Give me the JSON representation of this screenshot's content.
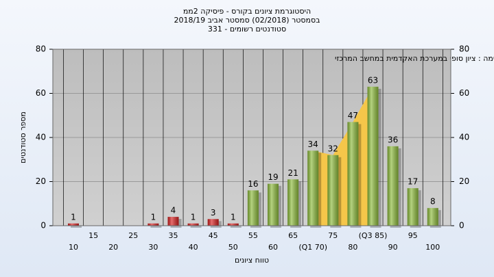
{
  "chart_data": {
    "type": "bar",
    "title_lines": [
      "היסטוגרמת ציונים בקורס - פיסיקה 2ממ",
      "בסמסטר  (02/2018)  סמסטר אביב 2018/19",
      "סטודנטים רשומים - 331"
    ],
    "annotation": "במשימה : ציון סופי במערכת האקדמית במחשב המרכזי",
    "y_label": "מספר סטודנטים",
    "x_label": "טווח ציונים",
    "categories": [
      "10",
      "15",
      "20",
      "25",
      "30",
      "35",
      "40",
      "45",
      "50",
      "55",
      "60",
      "65",
      "(Q1 70)",
      "75",
      "80",
      "(Q3 85)",
      "90",
      "95",
      "100"
    ],
    "values": [
      1,
      0,
      0,
      0,
      1,
      4,
      1,
      3,
      1,
      16,
      19,
      21,
      34,
      32,
      47,
      63,
      36,
      17,
      8
    ],
    "colors": [
      "#d62020",
      "#d62020",
      "#d62020",
      "#d62020",
      "#d62020",
      "#d62020",
      "#d62020",
      "#d62020",
      "#d62020",
      "#8dbb3c",
      "#8dbb3c",
      "#8dbb3c",
      "#8dbb3c",
      "#8dbb3c",
      "#8dbb3c",
      "#8dbb3c",
      "#8dbb3c",
      "#8dbb3c",
      "#8dbb3c"
    ],
    "quartile_range": [
      12,
      15
    ],
    "quartile_color": "#f5c64a",
    "ylim": [
      0,
      80
    ],
    "yticks": [
      0,
      20,
      40,
      60,
      80
    ],
    "grid": true
  }
}
